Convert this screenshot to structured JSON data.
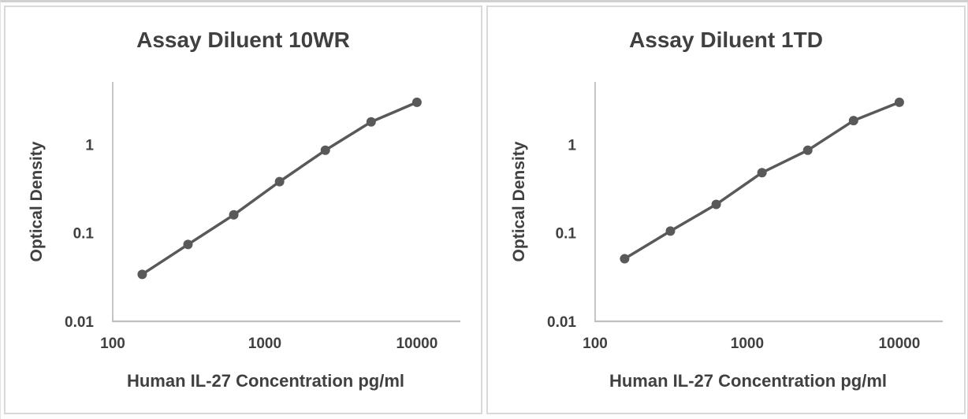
{
  "page": {
    "background": "#ffffff",
    "panel_border_color": "#d9d9d9",
    "frame_color": "#d0d0d0"
  },
  "chart_data": [
    {
      "type": "line",
      "title": "Assay Diluent 10WR",
      "xlabel": "Human IL-27 Concentration pg/ml",
      "ylabel": "Optical Density",
      "x_scale": "log",
      "y_scale": "log",
      "x": [
        156.25,
        312.5,
        625,
        1250,
        2500,
        5000,
        10000
      ],
      "y": [
        0.034,
        0.074,
        0.16,
        0.38,
        0.86,
        1.8,
        3.0
      ],
      "x_ticks": [
        100,
        1000,
        10000
      ],
      "y_ticks": [
        0.01,
        0.1,
        1
      ],
      "xlim": [
        100,
        19300
      ],
      "ylim": [
        0.01,
        5.1
      ],
      "grid": false,
      "legend": "none",
      "marker": "circle",
      "line_color": "#595959",
      "axis_color": "#bfbfbf",
      "text_color": "#404040"
    },
    {
      "type": "line",
      "title": "Assay Diluent 1TD",
      "xlabel": "Human IL-27 Concentration pg/ml",
      "ylabel": "Optical Density",
      "x_scale": "log",
      "y_scale": "log",
      "x": [
        156.25,
        312.5,
        625,
        1250,
        2500,
        5000,
        10000
      ],
      "y": [
        0.051,
        0.105,
        0.21,
        0.48,
        0.86,
        1.86,
        3.0
      ],
      "x_ticks": [
        100,
        1000,
        10000
      ],
      "y_ticks": [
        0.01,
        0.1,
        1
      ],
      "xlim": [
        100,
        19300
      ],
      "ylim": [
        0.01,
        5.1
      ],
      "grid": false,
      "legend": "none",
      "marker": "circle",
      "line_color": "#595959",
      "axis_color": "#bfbfbf",
      "text_color": "#404040"
    }
  ]
}
